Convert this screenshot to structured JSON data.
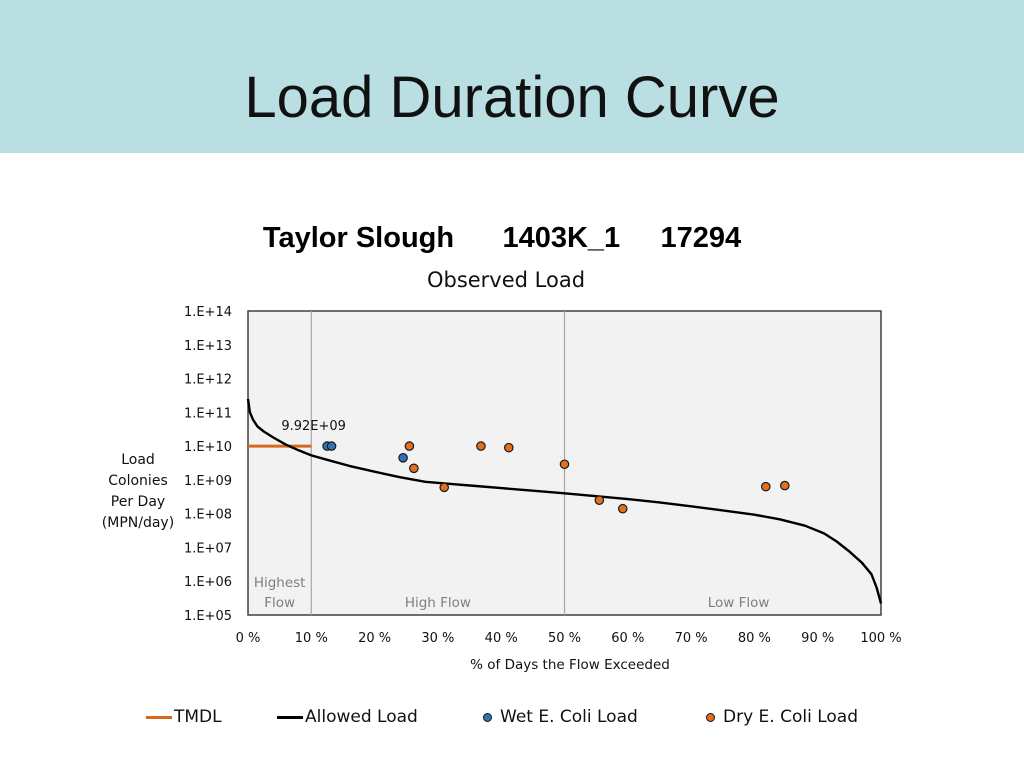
{
  "slide": {
    "title": "Load Duration Curve",
    "header_color": "#b9dfe3"
  },
  "chart_data": {
    "type": "scatter",
    "title": "Taylor Slough      1403K_1     17294",
    "subtitle": "Observed Load",
    "xlabel": "% of Days the Flow Exceeded",
    "ylabel": [
      "Load",
      "Colonies",
      "Per Day",
      "(MPN/day)"
    ],
    "x_range": [
      0,
      100
    ],
    "y_range": [
      100000,
      100000000000000
    ],
    "y_scale": "log",
    "x_ticks": [
      "0 %",
      "10 %",
      "20 %",
      "30 %",
      "40 %",
      "50 %",
      "60 %",
      "70 %",
      "80 %",
      "90 %",
      "100 %"
    ],
    "y_ticks": [
      "1.E+05",
      "1.E+06",
      "1.E+07",
      "1.E+08",
      "1.E+09",
      "1.E+10",
      "1.E+11",
      "1.E+12",
      "1.E+13",
      "1.E+14"
    ],
    "zone_dividers": [
      10,
      50
    ],
    "zones": [
      {
        "label": "Highest\nFlow",
        "x": 5
      },
      {
        "label": "High Flow",
        "x": 30
      },
      {
        "label": "Low Flow",
        "x": 77.5
      }
    ],
    "annotation": {
      "text": "9.92E+09",
      "x": 12.9,
      "y": 9920000000
    },
    "legend_position": "bottom",
    "colors": {
      "tmdl": "#d46a1f",
      "allowed": "#000000",
      "wet": "#2e75b6",
      "dry": "#e07020",
      "plot_bg": "#f2f2f2",
      "divider": "#a6a6a6"
    },
    "series": [
      {
        "name": "TMDL",
        "kind": "line",
        "points": [
          [
            0,
            10000000000
          ],
          [
            10,
            10000000000
          ]
        ]
      },
      {
        "name": "Allowed Load",
        "kind": "line",
        "points": [
          [
            0,
            250000000000
          ],
          [
            0.3,
            100000000000
          ],
          [
            0.8,
            60000000000
          ],
          [
            1.5,
            38000000000
          ],
          [
            2.5,
            27000000000
          ],
          [
            4,
            18000000000
          ],
          [
            6,
            11000000000
          ],
          [
            8,
            7500000000
          ],
          [
            10,
            5300000000
          ],
          [
            13,
            3700000000
          ],
          [
            16,
            2600000000
          ],
          [
            20,
            1750000000
          ],
          [
            24,
            1200000000
          ],
          [
            28,
            880000000
          ],
          [
            32,
            760000000
          ],
          [
            36,
            660000000
          ],
          [
            40,
            570000000
          ],
          [
            45,
            480000000
          ],
          [
            50,
            400000000
          ],
          [
            55,
            330000000
          ],
          [
            60,
            270000000
          ],
          [
            65,
            215000000
          ],
          [
            70,
            165000000
          ],
          [
            75,
            125000000
          ],
          [
            80,
            93000000
          ],
          [
            84,
            68000000
          ],
          [
            88,
            44000000
          ],
          [
            91,
            26000000
          ],
          [
            93,
            15000000
          ],
          [
            95,
            7600000
          ],
          [
            97,
            3500000
          ],
          [
            98.5,
            1600000
          ],
          [
            99.3,
            650000
          ],
          [
            100,
            220000
          ]
        ]
      },
      {
        "name": "Wet E. Coli Load",
        "kind": "scatter",
        "points": [
          [
            12.5,
            10000000000
          ],
          [
            13.2,
            10000000000
          ],
          [
            24.5,
            4500000000
          ]
        ]
      },
      {
        "name": "Dry E. Coli Load",
        "kind": "scatter",
        "points": [
          [
            25.5,
            10000000000
          ],
          [
            26.2,
            2200000000
          ],
          [
            31,
            600000000
          ],
          [
            36.8,
            10000000000
          ],
          [
            41.2,
            9000000000
          ],
          [
            50,
            2900000000
          ],
          [
            55.5,
            250000000
          ],
          [
            59.2,
            140000000
          ],
          [
            81.8,
            630000000
          ],
          [
            84.8,
            680000000
          ]
        ]
      }
    ]
  }
}
